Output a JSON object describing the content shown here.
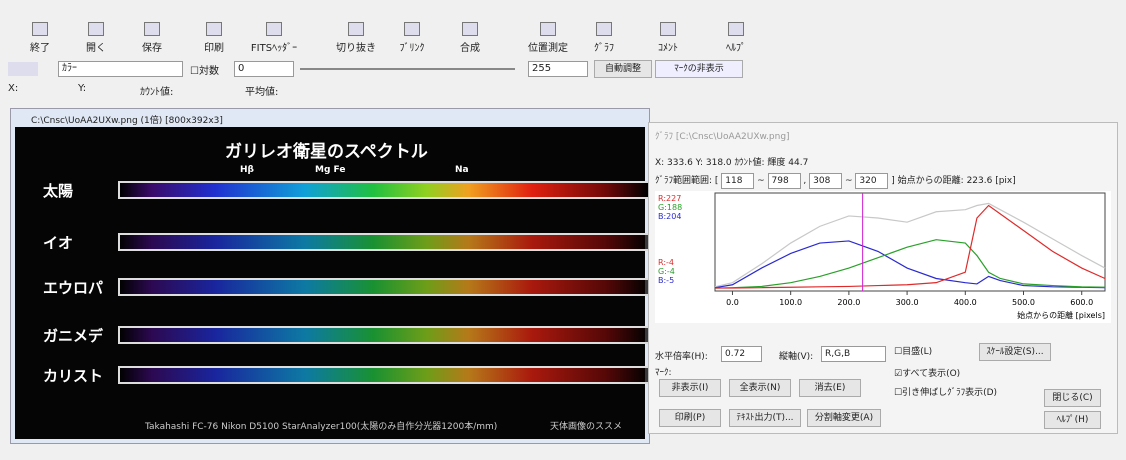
{
  "toolbar": {
    "buttons": [
      "終了",
      "開く",
      "保存",
      "印刷",
      "FITSﾍｯﾀﾞｰ",
      "切り抜き",
      "ﾌﾞﾘﾝｸ",
      "合成",
      "位置測定",
      "ｸﾞﾗﾌ",
      "ｺﾒﾝﾄ",
      "ﾍﾙﾌﾟ"
    ]
  },
  "controls": {
    "mode": "ｶﾗｰ",
    "log": "対数",
    "min": "0",
    "max": "255",
    "auto": "自動調整",
    "mark": "ﾏｰｸの非表示"
  },
  "status": {
    "x": "X:",
    "y": "Y:",
    "count": "ｶｳﾝﾄ値:",
    "mean": "平均値:"
  },
  "image_window": {
    "title": "C:\\Cnsc\\UoAA2UXw.png (1倍) [800x392x3]",
    "heading": "ガリレオ衛星のスペクトル",
    "lines": [
      "Hβ",
      "Mg Fe",
      "Na"
    ],
    "rows": [
      "太陽",
      "イオ",
      "エウロパ",
      "ガニメデ",
      "カリスト"
    ],
    "footer": "Takahashi FC-76  Nikon D5100  StarAnalyzer100(太陽のみ自作分光器1200本/mm)",
    "credit": "天体画像のススメ"
  },
  "graph_window": {
    "title": "ｸﾞﾗﾌ [C:\\Cnsc\\UoAA2UXw.png]",
    "position": "X: 333.6   Y: 318.0   ｶｳﾝﾄ値: 輝度 44.7",
    "range_label": "ｸﾞﾗﾌ範囲範囲: [",
    "range": [
      "118",
      "798",
      "308",
      "320"
    ],
    "distance_label": "始点からの距離:",
    "distance": 223.6,
    "distance_unit": "[pix]",
    "scale_top": [
      "R:227",
      "G:188",
      "B:204"
    ],
    "scale_bottom": [
      "R:-4",
      "G:-4",
      "B:-5"
    ],
    "h_scale_label": "水平倍率(H):",
    "h_scale": "0.72",
    "v_axis_label": "縦軸(V):",
    "v_axis": "R,G,B",
    "mark_label": "ﾏｰｸ:",
    "checks": [
      "目盛(L)",
      "すべて表示(O)",
      "引き伸ばしｸﾞﾗﾌ表示(D)"
    ],
    "buttons": [
      "ｽｹｰﾙ設定(S)...",
      "非表示(I)",
      "全表示(N)",
      "消去(E)",
      "閉じる(C)",
      "印刷(P)",
      "ﾃｷｽﾄ出力(T)...",
      "分割軸変更(A)",
      "ﾍﾙﾌﾟ(H)"
    ]
  },
  "chart_data": {
    "type": "line",
    "x_label": "始点からの距離 [pixels]",
    "x": [
      -30,
      0,
      50,
      100,
      150,
      200,
      250,
      300,
      350,
      400,
      420,
      440,
      460,
      500,
      550,
      600,
      640
    ],
    "series": [
      {
        "color": "#c8c8c8",
        "values": [
          5,
          15,
          60,
          110,
          150,
          175,
          170,
          160,
          185,
          190,
          200,
          205,
          190,
          160,
          120,
          80,
          50
        ]
      },
      {
        "color": "#2a2ad0",
        "values": [
          3,
          10,
          50,
          85,
          110,
          115,
          90,
          50,
          25,
          15,
          12,
          30,
          20,
          8,
          5,
          4,
          3
        ]
      },
      {
        "color": "#2aa02a",
        "values": [
          2,
          3,
          6,
          15,
          30,
          50,
          75,
          100,
          118,
          110,
          80,
          40,
          25,
          12,
          8,
          5,
          4
        ]
      },
      {
        "color": "#e02a2a",
        "values": [
          2,
          2,
          3,
          4,
          5,
          6,
          8,
          10,
          15,
          40,
          170,
          200,
          180,
          140,
          90,
          50,
          25
        ]
      }
    ],
    "xlim": [
      -30,
      640
    ],
    "ylim": [
      -5,
      230
    ],
    "xticks": [
      {
        "value": 0,
        "label": "0.0"
      },
      {
        "value": 100,
        "label": "100.0"
      },
      {
        "value": 200,
        "label": "200.0"
      },
      {
        "value": 300,
        "label": "300.0"
      },
      {
        "value": 400,
        "label": "400.0"
      },
      {
        "value": 500,
        "label": "500.0"
      },
      {
        "value": 600,
        "label": "600.0"
      }
    ]
  }
}
